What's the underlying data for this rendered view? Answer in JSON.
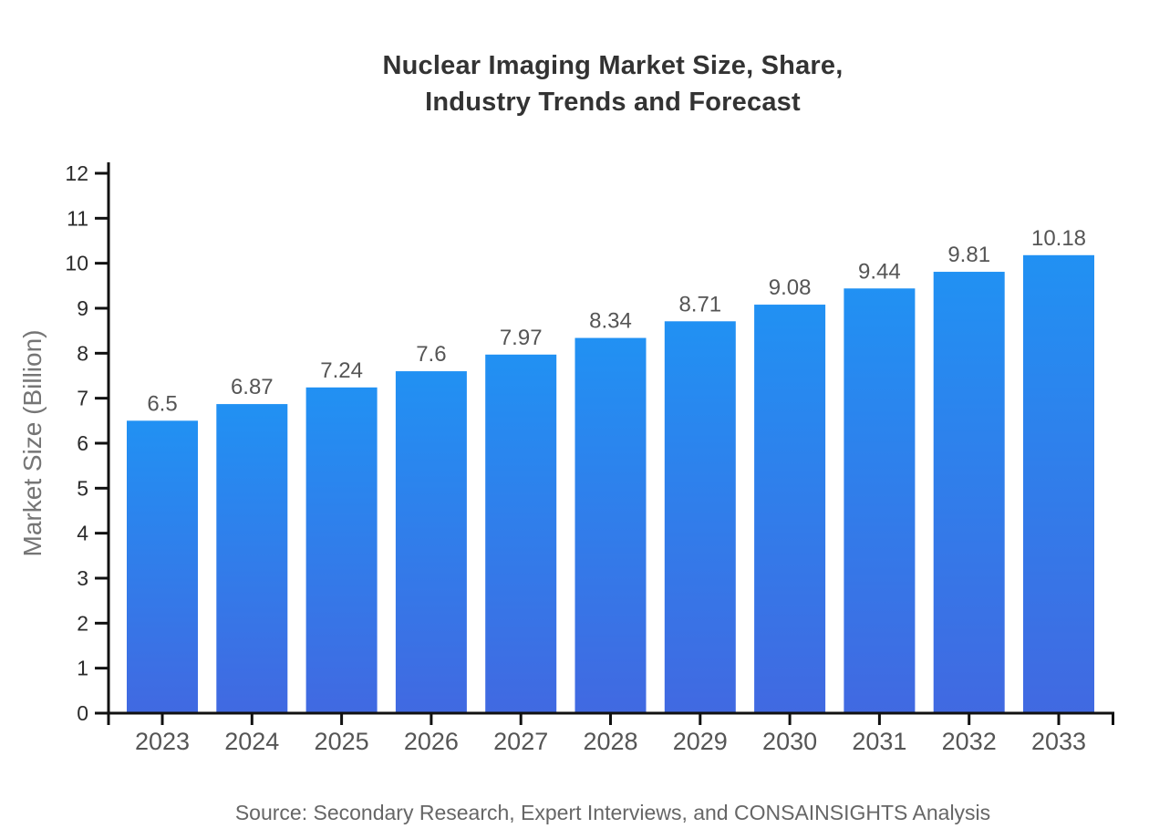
{
  "header": {
    "title_line1": "Nuclear Imaging Market Size, Share,",
    "title_line2": "Industry Trends and Forecast"
  },
  "chart_data": {
    "type": "bar",
    "title": "Nuclear Imaging Market Size, Share, Industry Trends and Forecast",
    "categories": [
      "2023",
      "2024",
      "2025",
      "2026",
      "2027",
      "2028",
      "2029",
      "2030",
      "2031",
      "2032",
      "2033"
    ],
    "values": [
      6.5,
      6.87,
      7.24,
      7.6,
      7.97,
      8.34,
      8.71,
      9.08,
      9.44,
      9.81,
      10.18
    ],
    "xlabel": "",
    "ylabel": "Market Size (Billion)",
    "ylim": [
      0,
      12
    ],
    "ytick_step": 1,
    "grid": false,
    "legend": "none",
    "bar_value_labels_shown": true,
    "colors": {
      "bar_gradient_top": "#2191F3",
      "bar_gradient_bottom": "#4169E1",
      "axis": "#111111",
      "y_tick_label": "#2b2b2b",
      "x_tick_label": "#555555",
      "value_label": "#555555",
      "axis_title": "#757575",
      "title": "#333333",
      "source": "#666666"
    }
  },
  "footer": {
    "source": "Source: Secondary Research, Expert Interviews, and CONSAINSIGHTS Analysis"
  }
}
